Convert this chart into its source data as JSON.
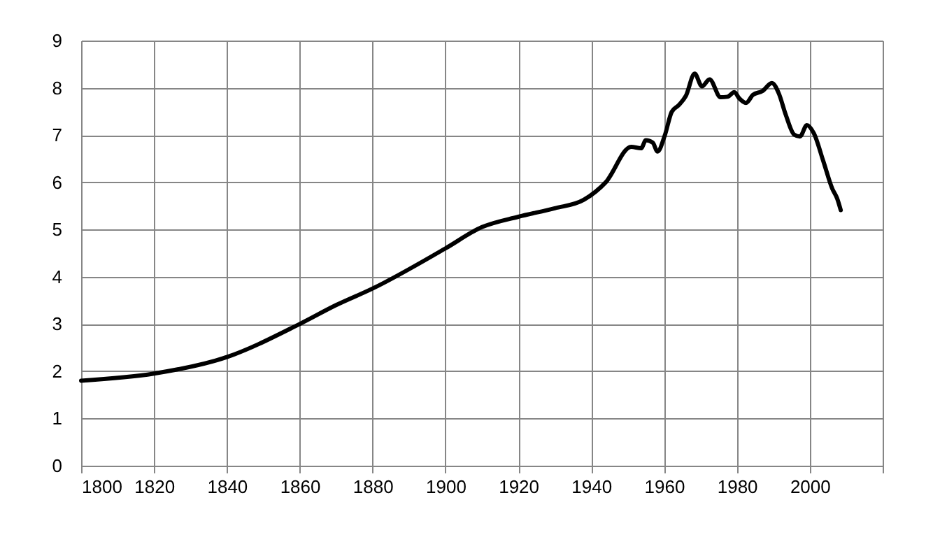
{
  "chart_data": {
    "type": "line",
    "x": [
      1800,
      1820,
      1840,
      1860,
      1870,
      1880,
      1900,
      1910,
      1920,
      1930,
      1938,
      1944,
      1951,
      1953.7,
      1955,
      1956.9,
      1958.2,
      1960.2,
      1962.1,
      1964,
      1966,
      1968.4,
      1970.4,
      1972.5,
      1975.5,
      1977.4,
      1979.3,
      1980.6,
      1982.5,
      1984.4,
      1987,
      1989.6,
      1991.5,
      1993.4,
      1995.7,
      1997.3,
      1999.2,
      2001.1,
      2003.7,
      2006.2,
      2007.5,
      2008.5
    ],
    "series": [
      {
        "color": "#000000",
        "values": [
          1.8,
          1.95,
          2.3,
          3.0,
          3.4,
          3.75,
          4.6,
          5.05,
          5.27,
          5.45,
          5.63,
          6.0,
          6.75,
          6.72,
          6.89,
          6.84,
          6.65,
          6.99,
          7.49,
          7.63,
          7.83,
          8.3,
          8.03,
          8.18,
          7.8,
          7.81,
          7.91,
          7.78,
          7.68,
          7.85,
          7.93,
          8.1,
          7.88,
          7.43,
          7.01,
          6.97,
          7.21,
          7.04,
          6.45,
          5.86,
          5.66,
          5.41
        ]
      }
    ],
    "xlim": [
      1800,
      2020
    ],
    "xticks": [
      1800,
      1820,
      1840,
      1860,
      1880,
      1900,
      1920,
      1940,
      1960,
      1980,
      2000,
      {
        "value": 2020,
        "label": null
      }
    ],
    "ylim": [
      0,
      9
    ],
    "yticks": [
      0,
      1,
      2,
      3,
      4,
      5,
      6,
      7,
      8,
      9
    ],
    "grid": true
  }
}
